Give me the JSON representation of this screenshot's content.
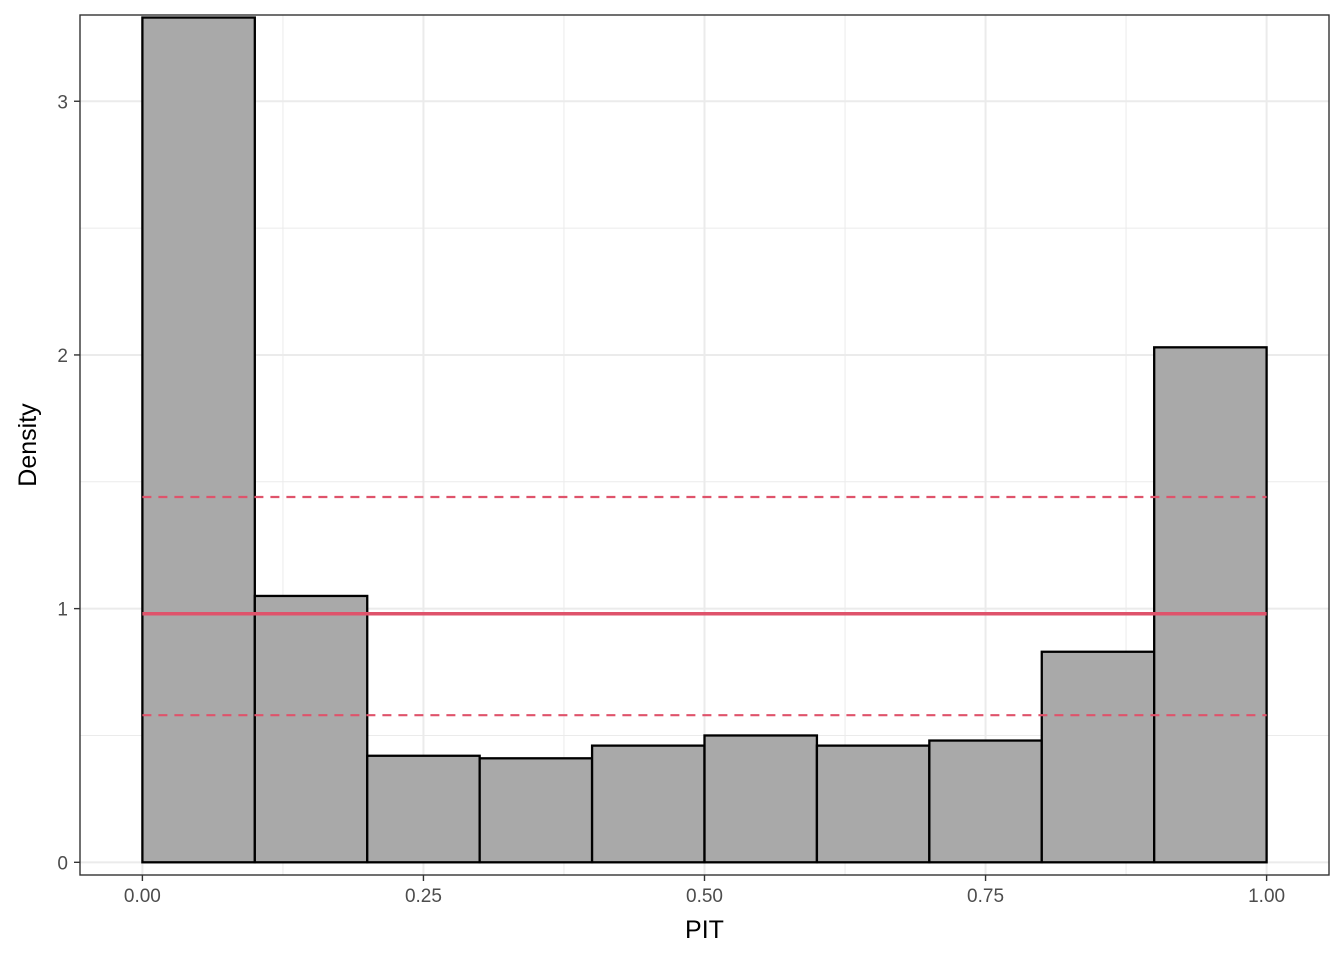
{
  "chart_data": {
    "type": "bar",
    "title": "",
    "xlabel": "PIT",
    "ylabel": "Density",
    "xlim": [
      -0.0555,
      1.0555
    ],
    "ylim": [
      -0.05,
      3.34
    ],
    "x_ticks": [
      0,
      0.25,
      0.5,
      0.75,
      1
    ],
    "x_tick_labels": [
      "0.00",
      "0.25",
      "0.50",
      "0.75",
      "1.00"
    ],
    "y_ticks": [
      0,
      1,
      2,
      3
    ],
    "y_tick_labels": [
      "0",
      "1",
      "2",
      "3"
    ],
    "bins": [
      {
        "x0": 0.0,
        "x1": 0.1,
        "density": 3.33
      },
      {
        "x0": 0.1,
        "x1": 0.2,
        "density": 1.05
      },
      {
        "x0": 0.2,
        "x1": 0.3,
        "density": 0.42
      },
      {
        "x0": 0.3,
        "x1": 0.4,
        "density": 0.41
      },
      {
        "x0": 0.4,
        "x1": 0.5,
        "density": 0.46
      },
      {
        "x0": 0.5,
        "x1": 0.6,
        "density": 0.5
      },
      {
        "x0": 0.6,
        "x1": 0.7,
        "density": 0.46
      },
      {
        "x0": 0.7,
        "x1": 0.8,
        "density": 0.48
      },
      {
        "x0": 0.8,
        "x1": 0.9,
        "density": 0.83
      },
      {
        "x0": 0.9,
        "x1": 1.0,
        "density": 2.03
      }
    ],
    "reference_lines": [
      {
        "style": "solid",
        "y": 0.98
      },
      {
        "style": "dashed",
        "y": 1.44
      },
      {
        "style": "dashed",
        "y": 0.58
      }
    ],
    "grid": true,
    "colors": {
      "bar_fill": "#a9a9a9",
      "bar_stroke": "#000000",
      "reference": "#df536b",
      "grid": "#ebebeb",
      "panel_border": "#333333"
    }
  }
}
